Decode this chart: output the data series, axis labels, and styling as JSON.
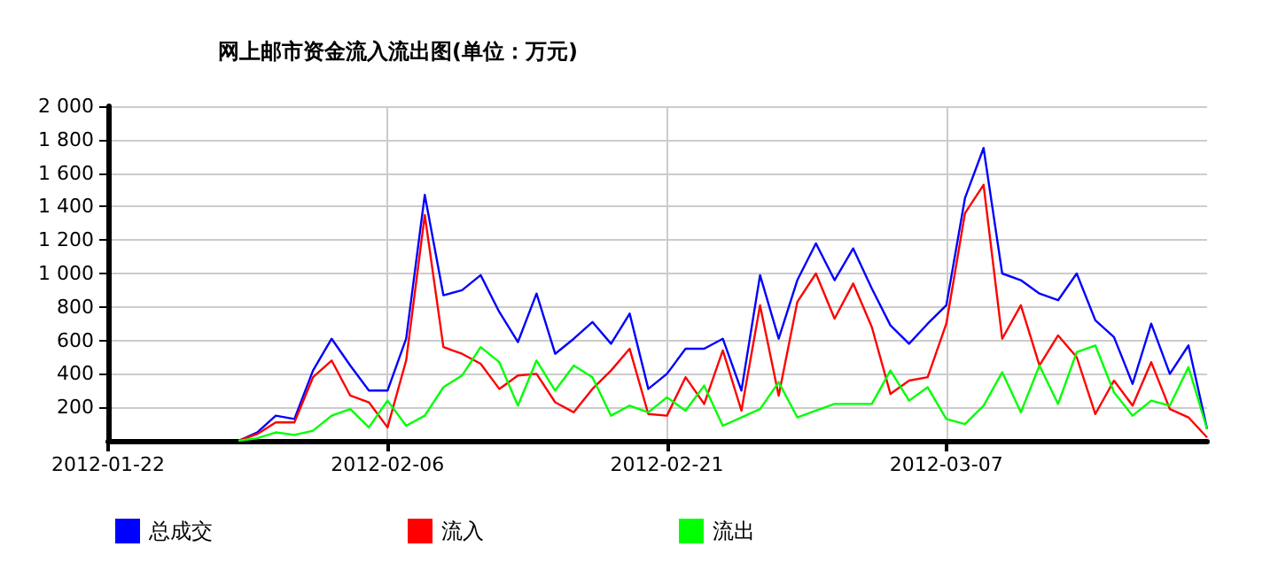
{
  "chart_data": {
    "type": "line",
    "title": "网上邮市资金流入流出图(单位：万元)",
    "x": [
      "2012-01-29",
      "2012-01-30",
      "2012-01-31",
      "2012-02-01",
      "2012-02-02",
      "2012-02-03",
      "2012-02-04",
      "2012-02-05",
      "2012-02-06",
      "2012-02-07",
      "2012-02-08",
      "2012-02-09",
      "2012-02-10",
      "2012-02-11",
      "2012-02-12",
      "2012-02-13",
      "2012-02-14",
      "2012-02-15",
      "2012-02-16",
      "2012-02-17",
      "2012-02-18",
      "2012-02-19",
      "2012-02-20",
      "2012-02-21",
      "2012-02-22",
      "2012-02-23",
      "2012-02-24",
      "2012-02-25",
      "2012-02-26",
      "2012-02-27",
      "2012-02-28",
      "2012-02-29",
      "2012-03-01",
      "2012-03-02",
      "2012-03-03",
      "2012-03-04",
      "2012-03-05",
      "2012-03-06",
      "2012-03-07",
      "2012-03-08",
      "2012-03-09",
      "2012-03-10",
      "2012-03-11",
      "2012-03-12",
      "2012-03-13",
      "2012-03-14",
      "2012-03-15",
      "2012-03-16",
      "2012-03-17",
      "2012-03-18",
      "2012-03-19",
      "2012-03-20",
      "2012-03-21"
    ],
    "series": [
      {
        "name": "总成交",
        "color": "#0000ff",
        "values": [
          0,
          50,
          150,
          130,
          420,
          610,
          450,
          300,
          300,
          610,
          1470,
          870,
          900,
          990,
          770,
          590,
          880,
          520,
          610,
          710,
          580,
          760,
          310,
          400,
          550,
          550,
          610,
          300,
          990,
          610,
          960,
          1180,
          960,
          1150,
          910,
          690,
          580,
          700,
          810,
          1450,
          1750,
          1000,
          960,
          880,
          840,
          1000,
          720,
          620,
          340,
          700,
          400,
          570,
          70
        ]
      },
      {
        "name": "流入",
        "color": "#ff0000",
        "values": [
          0,
          40,
          110,
          110,
          380,
          480,
          270,
          230,
          80,
          480,
          1350,
          560,
          520,
          460,
          310,
          390,
          400,
          230,
          170,
          310,
          420,
          550,
          160,
          150,
          380,
          220,
          540,
          180,
          810,
          270,
          830,
          1000,
          730,
          940,
          680,
          280,
          360,
          380,
          700,
          1360,
          1530,
          610,
          810,
          450,
          630,
          500,
          160,
          360,
          210,
          470,
          190,
          140,
          20
        ]
      },
      {
        "name": "流出",
        "color": "#00ff00",
        "values": [
          0,
          15,
          50,
          35,
          60,
          150,
          190,
          80,
          240,
          90,
          150,
          320,
          390,
          560,
          470,
          210,
          480,
          300,
          450,
          380,
          150,
          210,
          170,
          260,
          180,
          330,
          90,
          140,
          190,
          350,
          140,
          180,
          220,
          220,
          220,
          420,
          240,
          320,
          130,
          100,
          210,
          410,
          170,
          450,
          220,
          530,
          570,
          290,
          150,
          240,
          210,
          440,
          70
        ]
      }
    ],
    "xlim": [
      "2012-01-22",
      "2012-03-21"
    ],
    "xticks": [
      "2012-01-22",
      "2012-02-06",
      "2012-02-21",
      "2012-03-07"
    ],
    "ylim": [
      0,
      2000
    ],
    "yticks": [
      200,
      400,
      600,
      800,
      {
        "value": 1000,
        "label": "1 000"
      },
      {
        "value": 1200,
        "label": "1 200"
      },
      {
        "value": 1400,
        "label": "1 400"
      },
      {
        "value": 1600,
        "label": "1 600"
      },
      {
        "value": 1800,
        "label": "1 800"
      },
      {
        "value": 2000,
        "label": "2 000"
      }
    ],
    "grid": true,
    "legend": "bottom left",
    "marker": "none",
    "line_style": "solid"
  }
}
